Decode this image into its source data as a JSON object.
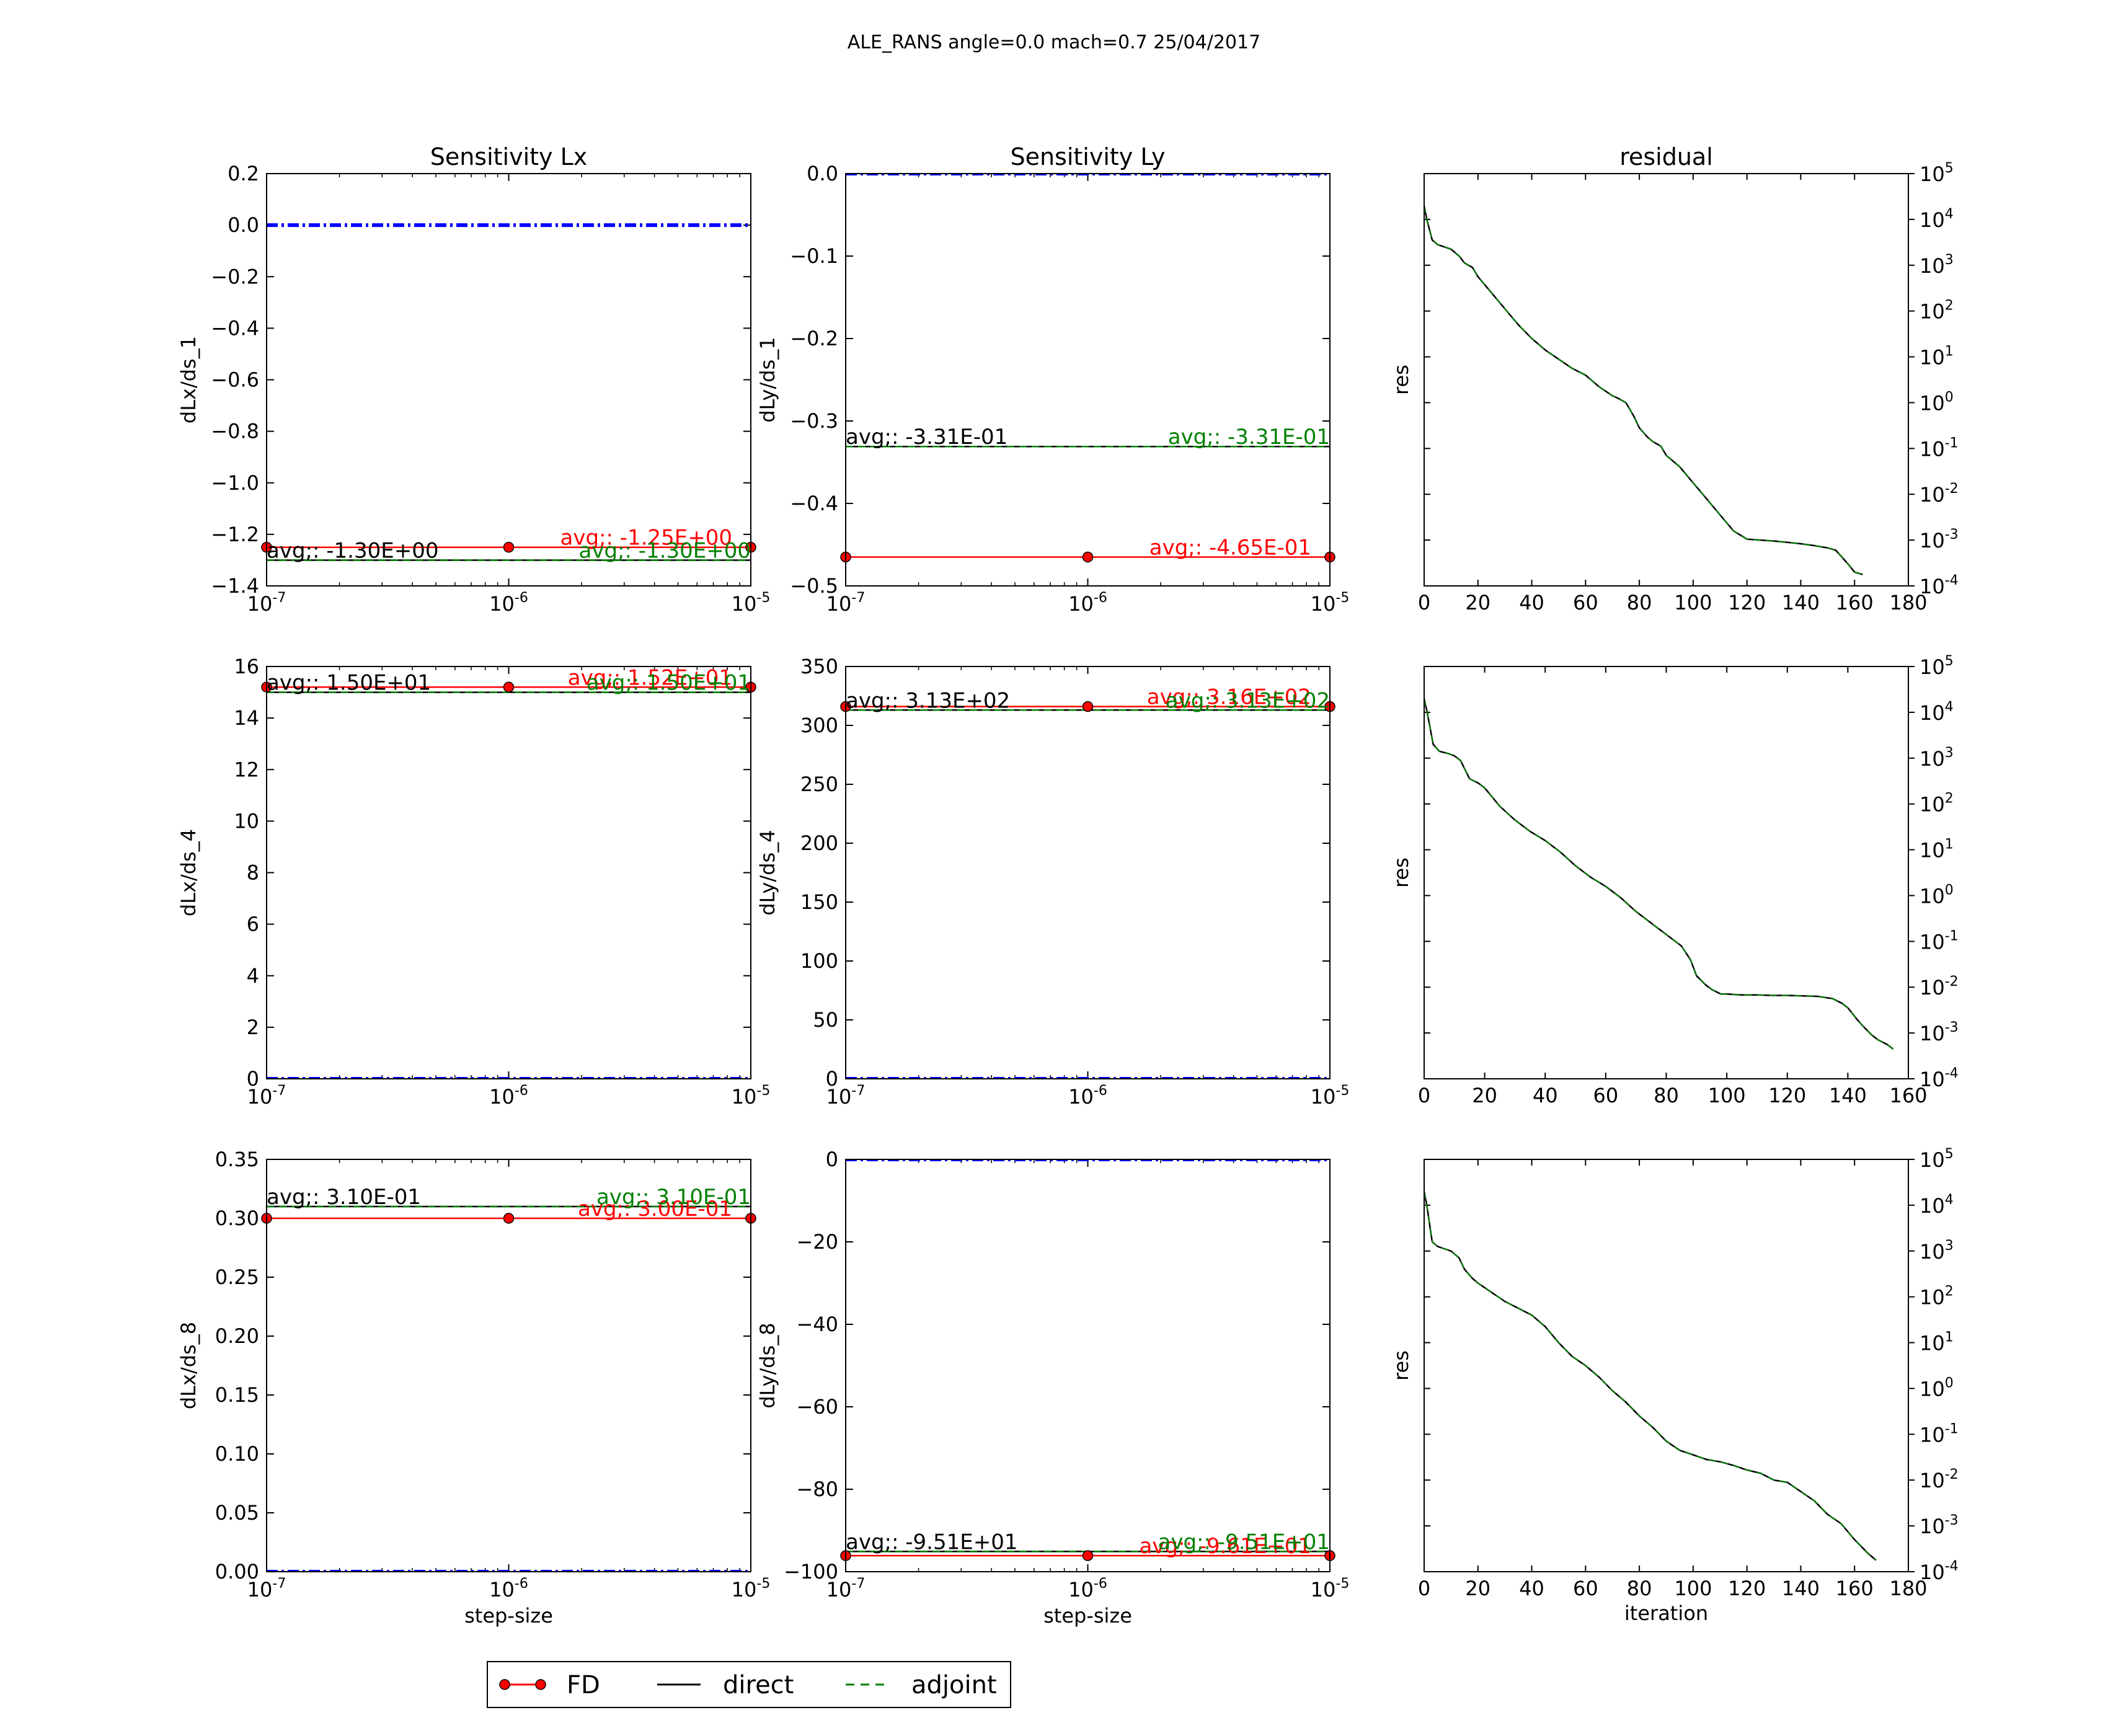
{
  "figure": {
    "suptitle": "ALE_RANS  angle=0.0 mach=0.7 25/04/2017"
  },
  "colors": {
    "fd": "#ff0000",
    "direct": "#000000",
    "adjoint": "#008000",
    "zero_ref": "#0000ff",
    "residual_direct": "#000000",
    "residual_adjoint": "#008000"
  },
  "legend": {
    "fd": "FD",
    "direct": "direct",
    "adjoint": "adjoint",
    "placement": "bottom-left"
  },
  "chart_data": [
    {
      "type": "line",
      "row": 0,
      "col": 0,
      "title": "Sensitivity Lx",
      "ylabel": "dLx/ds_1",
      "xlabel": "",
      "xscale": "log",
      "xlim": [
        1e-07,
        1e-05
      ],
      "ylim": [
        -1.4,
        0.2
      ],
      "yticks": [
        -1.4,
        -1.2,
        -1.0,
        -0.8,
        -0.6,
        -0.4,
        -0.2,
        0.0,
        0.2
      ],
      "fd": {
        "x": [
          1e-07,
          1e-06,
          1e-05
        ],
        "y": [
          -1.25,
          -1.25,
          -1.25
        ]
      },
      "direct": -1.3,
      "adjoint": -1.3,
      "zero_ref": 0.0,
      "annotations": {
        "direct": "avg;: -1.30E+00",
        "fd": "avg;: -1.25E+00",
        "adjoint": "avg;: -1.30E+00"
      }
    },
    {
      "type": "line",
      "row": 0,
      "col": 1,
      "title": "Sensitivity Ly",
      "ylabel": "dLy/ds_1",
      "xlabel": "",
      "xscale": "log",
      "xlim": [
        1e-07,
        1e-05
      ],
      "ylim": [
        -0.5,
        0.0
      ],
      "yticks": [
        -0.5,
        -0.4,
        -0.3,
        -0.2,
        -0.1,
        0.0
      ],
      "fd": {
        "x": [
          1e-07,
          1e-06,
          1e-05
        ],
        "y": [
          -0.465,
          -0.465,
          -0.465
        ]
      },
      "direct": -0.331,
      "adjoint": -0.331,
      "zero_ref": 0.0,
      "annotations": {
        "direct": "avg;: -3.31E-01",
        "fd": "avg;: -4.65E-01",
        "adjoint": "avg;: -3.31E-01"
      }
    },
    {
      "type": "line",
      "row": 0,
      "col": 2,
      "kind": "residual",
      "title": "residual",
      "ylabel": "res",
      "xlabel": "",
      "yscale": "log",
      "ylim_exp": [
        -4,
        5
      ],
      "yticks_exp": [
        -4,
        -3,
        -2,
        -1,
        0,
        1,
        2,
        3,
        4,
        5
      ],
      "xlim": [
        0,
        180
      ],
      "xticks": [
        0,
        20,
        40,
        60,
        80,
        100,
        120,
        140,
        160,
        180
      ],
      "log10_res": {
        "x": [
          0,
          1,
          3,
          5,
          10,
          13,
          15,
          18,
          20,
          25,
          30,
          35,
          40,
          45,
          50,
          55,
          60,
          65,
          70,
          72,
          75,
          78,
          80,
          83,
          85,
          88,
          90,
          95,
          100,
          105,
          110,
          115,
          120,
          125,
          130,
          135,
          140,
          145,
          150,
          153,
          155,
          158,
          160,
          163
        ],
        "y": [
          4.3,
          4.0,
          3.55,
          3.45,
          3.35,
          3.2,
          3.05,
          2.95,
          2.75,
          2.4,
          2.05,
          1.7,
          1.4,
          1.15,
          0.95,
          0.75,
          0.6,
          0.35,
          0.15,
          0.1,
          0.0,
          -0.3,
          -0.55,
          -0.75,
          -0.85,
          -0.95,
          -1.15,
          -1.4,
          -1.75,
          -2.1,
          -2.45,
          -2.8,
          -2.98,
          -3.0,
          -3.02,
          -3.05,
          -3.08,
          -3.12,
          -3.17,
          -3.22,
          -3.35,
          -3.55,
          -3.7,
          -3.75
        ]
      }
    },
    {
      "type": "line",
      "row": 1,
      "col": 0,
      "title": "",
      "ylabel": "dLx/ds_4",
      "xlabel": "",
      "xscale": "log",
      "xlim": [
        1e-07,
        1e-05
      ],
      "ylim": [
        0,
        16
      ],
      "yticks": [
        0,
        2,
        4,
        6,
        8,
        10,
        12,
        14,
        16
      ],
      "fd": {
        "x": [
          1e-07,
          1e-06,
          1e-05
        ],
        "y": [
          15.2,
          15.2,
          15.2
        ]
      },
      "direct": 15.0,
      "adjoint": 15.0,
      "zero_ref": 0.0,
      "annotations": {
        "direct": "avg;: 1.50E+01",
        "fd": "avg;: 1.52E+01",
        "adjoint": "avg;: 1.50E+01"
      }
    },
    {
      "type": "line",
      "row": 1,
      "col": 1,
      "title": "",
      "ylabel": "dLy/ds_4",
      "xlabel": "",
      "xscale": "log",
      "xlim": [
        1e-07,
        1e-05
      ],
      "ylim": [
        0,
        350
      ],
      "yticks": [
        0,
        50,
        100,
        150,
        200,
        250,
        300,
        350
      ],
      "fd": {
        "x": [
          1e-07,
          1e-06,
          1e-05
        ],
        "y": [
          316,
          316,
          316
        ]
      },
      "direct": 313,
      "adjoint": 313,
      "zero_ref": 0.0,
      "annotations": {
        "direct": "avg;: 3.13E+02",
        "fd": "avg;: 3.16E+02",
        "adjoint": "avg;: 3.13E+02"
      }
    },
    {
      "type": "line",
      "row": 1,
      "col": 2,
      "kind": "residual",
      "title": "",
      "ylabel": "res",
      "xlabel": "",
      "yscale": "log",
      "ylim_exp": [
        -4,
        5
      ],
      "yticks_exp": [
        -4,
        -3,
        -2,
        -1,
        0,
        1,
        2,
        3,
        4,
        5
      ],
      "xlim": [
        0,
        160
      ],
      "xticks": [
        0,
        20,
        40,
        60,
        80,
        100,
        120,
        140,
        160
      ],
      "log10_res": {
        "x": [
          0,
          1,
          3,
          5,
          8,
          10,
          12,
          15,
          18,
          20,
          25,
          30,
          35,
          40,
          45,
          50,
          55,
          60,
          65,
          70,
          75,
          80,
          85,
          88,
          90,
          93,
          95,
          98,
          100,
          105,
          110,
          115,
          120,
          125,
          130,
          135,
          138,
          140,
          143,
          145,
          148,
          150,
          153,
          155
        ],
        "y": [
          4.3,
          4.0,
          3.3,
          3.15,
          3.1,
          3.05,
          2.95,
          2.55,
          2.45,
          2.35,
          1.95,
          1.65,
          1.4,
          1.2,
          0.95,
          0.65,
          0.4,
          0.2,
          -0.05,
          -0.35,
          -0.6,
          -0.85,
          -1.1,
          -1.4,
          -1.75,
          -1.95,
          -2.05,
          -2.15,
          -2.15,
          -2.17,
          -2.17,
          -2.18,
          -2.18,
          -2.19,
          -2.2,
          -2.25,
          -2.35,
          -2.45,
          -2.7,
          -2.85,
          -3.05,
          -3.15,
          -3.25,
          -3.35
        ]
      }
    },
    {
      "type": "line",
      "row": 2,
      "col": 0,
      "title": "",
      "ylabel": "dLx/ds_8",
      "xlabel": "step-size",
      "xscale": "log",
      "xlim": [
        1e-07,
        1e-05
      ],
      "ylim": [
        0,
        0.35
      ],
      "yticks": [
        0.0,
        0.05,
        0.1,
        0.15,
        0.2,
        0.25,
        0.3,
        0.35
      ],
      "fd": {
        "x": [
          1e-07,
          1e-06,
          1e-05
        ],
        "y": [
          0.3,
          0.3,
          0.3
        ]
      },
      "direct": 0.31,
      "adjoint": 0.31,
      "zero_ref": 0.0,
      "annotations": {
        "direct": "avg;: 3.10E-01",
        "fd": "avg;: 3.00E-01",
        "adjoint": "avg;: 3.10E-01"
      }
    },
    {
      "type": "line",
      "row": 2,
      "col": 1,
      "title": "",
      "ylabel": "dLy/ds_8",
      "xlabel": "step-size",
      "xscale": "log",
      "xlim": [
        1e-07,
        1e-05
      ],
      "ylim": [
        -100,
        0
      ],
      "yticks": [
        -100,
        -80,
        -60,
        -40,
        -20,
        0
      ],
      "fd": {
        "x": [
          1e-07,
          1e-06,
          1e-05
        ],
        "y": [
          -96.1,
          -96.1,
          -96.1
        ]
      },
      "direct": -95.1,
      "adjoint": -95.1,
      "zero_ref": 0.0,
      "annotations": {
        "direct": "avg;: -9.51E+01",
        "fd": "avg;: -9.61E+01",
        "adjoint": "avg;: -9.51E+01"
      }
    },
    {
      "type": "line",
      "row": 2,
      "col": 2,
      "kind": "residual",
      "title": "",
      "ylabel": "res",
      "xlabel": "iteration",
      "yscale": "log",
      "ylim_exp": [
        -4,
        5
      ],
      "yticks_exp": [
        -4,
        -3,
        -2,
        -1,
        0,
        1,
        2,
        3,
        4,
        5
      ],
      "xlim": [
        0,
        180
      ],
      "xticks": [
        0,
        20,
        40,
        60,
        80,
        100,
        120,
        140,
        160,
        180
      ],
      "log10_res": {
        "x": [
          0,
          1,
          3,
          5,
          10,
          13,
          15,
          18,
          20,
          25,
          30,
          35,
          40,
          45,
          50,
          55,
          60,
          65,
          70,
          75,
          80,
          85,
          90,
          95,
          100,
          105,
          110,
          115,
          120,
          125,
          130,
          135,
          140,
          145,
          150,
          155,
          160,
          165,
          168
        ],
        "y": [
          4.3,
          4.0,
          3.2,
          3.1,
          3.0,
          2.85,
          2.6,
          2.4,
          2.3,
          2.1,
          1.9,
          1.75,
          1.6,
          1.35,
          1.0,
          0.7,
          0.5,
          0.25,
          -0.05,
          -0.3,
          -0.6,
          -0.85,
          -1.15,
          -1.35,
          -1.45,
          -1.55,
          -1.6,
          -1.68,
          -1.78,
          -1.85,
          -2.0,
          -2.05,
          -2.25,
          -2.45,
          -2.75,
          -2.95,
          -3.3,
          -3.6,
          -3.75
        ]
      }
    }
  ]
}
